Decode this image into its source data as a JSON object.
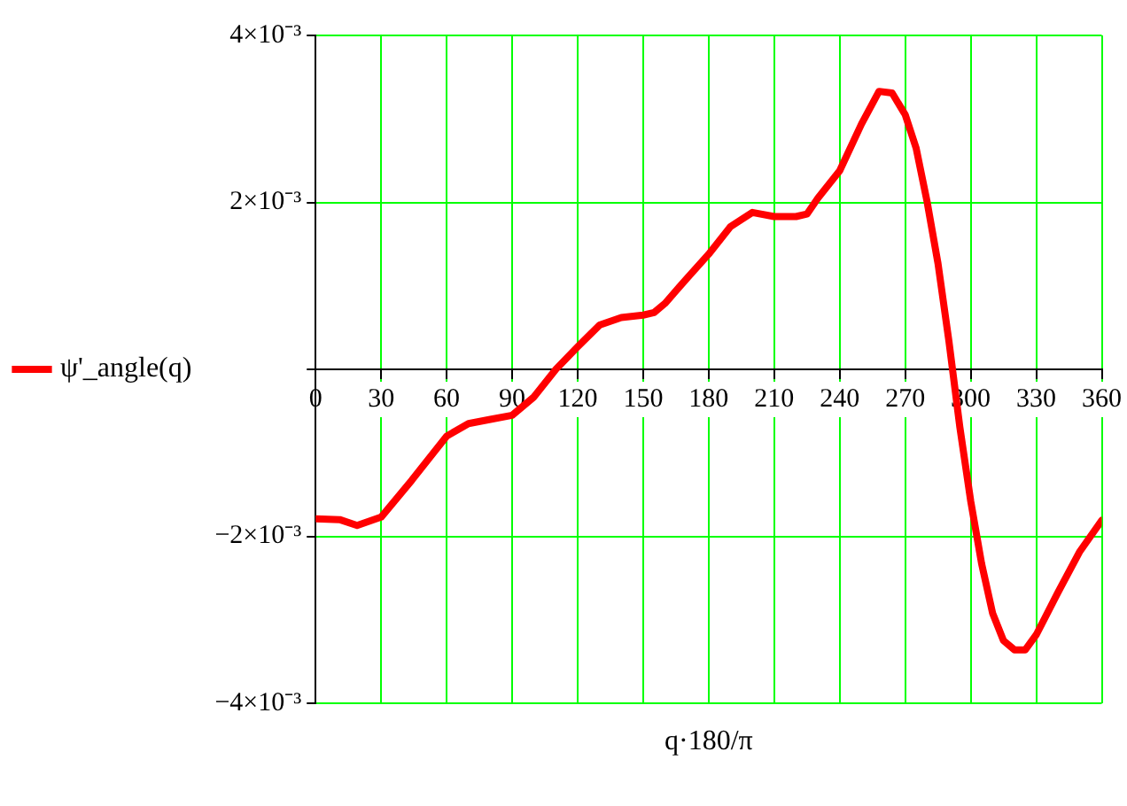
{
  "chart_data": {
    "type": "line",
    "xlabel": "q·180/π",
    "x": [
      0,
      11,
      19,
      30,
      44,
      60,
      70,
      80,
      90,
      100,
      110,
      120,
      130,
      140,
      150,
      155,
      160,
      170,
      180,
      190,
      200,
      210,
      220,
      225,
      230,
      240,
      250,
      258,
      264,
      270,
      275,
      280,
      285,
      290,
      295,
      300,
      305,
      310,
      315,
      320,
      325,
      330,
      340,
      350,
      360
    ],
    "series": [
      {
        "name": "ψ'_angle(q)",
        "color": "#ff0000",
        "values": [
          -0.00179,
          -0.0018,
          -0.00187,
          -0.00177,
          -0.00133,
          -0.0008,
          -0.00065,
          -0.0006,
          -0.00055,
          -0.00033,
          0,
          0.00027,
          0.00053,
          0.00062,
          0.00065,
          0.00068,
          0.00079,
          0.00109,
          0.00138,
          0.00171,
          0.00188,
          0.00183,
          0.00183,
          0.00186,
          0.00205,
          0.00238,
          0.00294,
          0.00333,
          0.00331,
          0.00305,
          0.00265,
          0.00201,
          0.00127,
          0.00034,
          -0.00069,
          -0.00158,
          -0.00233,
          -0.00292,
          -0.00325,
          -0.00336,
          -0.00336,
          -0.00318,
          -0.00267,
          -0.00218,
          -0.00181
        ]
      }
    ],
    "xlim": [
      0,
      360
    ],
    "xticks": [
      0,
      30,
      60,
      90,
      120,
      150,
      180,
      210,
      240,
      270,
      300,
      330,
      360
    ],
    "ylim": [
      -0.004,
      0.004
    ],
    "yticks": [
      {
        "value": -0.004,
        "label": "−4×10⁻³"
      },
      {
        "value": -0.002,
        "label": "−2×10⁻³"
      },
      {
        "value": 0,
        "label": null
      },
      {
        "value": 0.002,
        "label": "2×10⁻³"
      },
      {
        "value": 0.004,
        "label": "4×10⁻³"
      }
    ],
    "grid": true,
    "legend": "left",
    "marker": "none",
    "line_style": "solid"
  }
}
